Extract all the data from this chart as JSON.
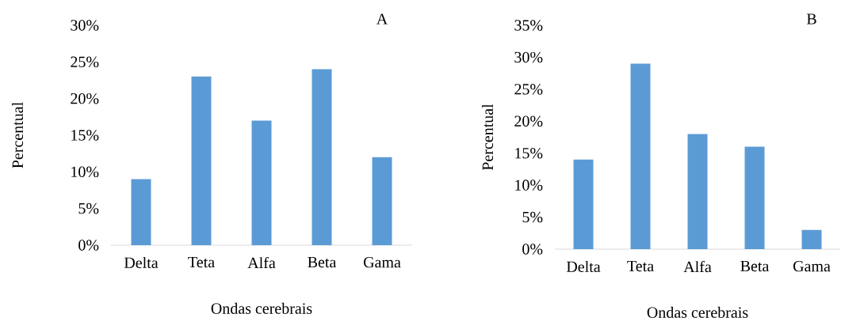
{
  "chart_data": [
    {
      "type": "bar",
      "title": "A",
      "xlabel": "Ondas cerebrais",
      "ylabel": "Percentual",
      "categories": [
        "Delta",
        "Teta",
        "Alfa",
        "Beta",
        "Gama"
      ],
      "values": [
        9,
        23,
        17,
        24,
        12
      ],
      "color": "#5b9bd5",
      "ylim": [
        0,
        30
      ],
      "yticks": [
        {
          "value": 0,
          "label": "0%"
        },
        {
          "value": 5,
          "label": "5%"
        },
        {
          "value": 10,
          "label": "10%"
        },
        {
          "value": 15,
          "label": "15%"
        },
        {
          "value": 20,
          "label": "20%"
        },
        {
          "value": 25,
          "label": "25%"
        },
        {
          "value": 30,
          "label": "30%"
        }
      ]
    },
    {
      "type": "bar",
      "title": "B",
      "xlabel": "Ondas cerebrais",
      "ylabel": "Percentual",
      "categories": [
        "Delta",
        "Teta",
        "Alfa",
        "Beta",
        "Gama"
      ],
      "values": [
        14,
        29,
        18,
        16,
        3
      ],
      "color": "#5b9bd5",
      "ylim": [
        0,
        35
      ],
      "yticks": [
        {
          "value": 0,
          "label": "0%"
        },
        {
          "value": 5,
          "label": "5%"
        },
        {
          "value": 10,
          "label": "10%"
        },
        {
          "value": 15,
          "label": "15%"
        },
        {
          "value": 20,
          "label": "20%"
        },
        {
          "value": 25,
          "label": "25%"
        },
        {
          "value": 30,
          "label": "30%"
        },
        {
          "value": 35,
          "label": "35%"
        }
      ]
    }
  ]
}
